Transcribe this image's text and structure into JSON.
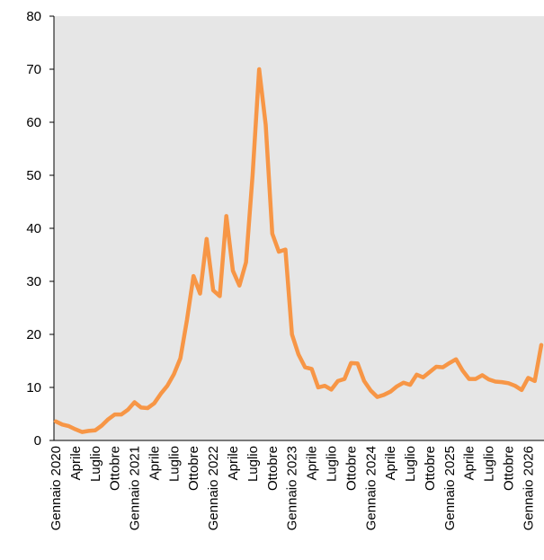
{
  "chart_data": {
    "type": "line",
    "categories": [
      "Gennaio 2020",
      null,
      null,
      "Aprile",
      null,
      null,
      "Luglio",
      null,
      null,
      "Ottobre",
      null,
      null,
      "Gennaio 2021",
      null,
      null,
      "Aprile",
      null,
      null,
      "Luglio",
      null,
      null,
      "Ottobre",
      null,
      null,
      "Gennaio 2022",
      null,
      null,
      "Aprile",
      null,
      null,
      "Luglio",
      null,
      null,
      "Ottobre",
      null,
      null,
      "Gennaio 2023",
      null,
      null,
      "Aprile",
      null,
      null,
      "Luglio",
      null,
      null,
      "Ottobre",
      null,
      null,
      "Gennaio 2024",
      null,
      null,
      "Aprile",
      null,
      null,
      "Luglio",
      null,
      null,
      "Ottobre",
      null,
      null,
      "Gennaio 2025",
      null,
      null,
      "Aprile",
      null,
      null,
      "Luglio",
      null,
      null,
      "Ottobre",
      null,
      null,
      "Gennaio 2026",
      null,
      null
    ],
    "series": [
      {
        "color": "#f79646",
        "values": [
          3.6,
          3.0,
          2.7,
          2.1,
          1.6,
          1.8,
          1.9,
          2.8,
          4.0,
          4.9,
          4.9,
          5.8,
          7.2,
          6.2,
          6.1,
          7.0,
          8.8,
          10.3,
          12.5,
          15.5,
          22.7,
          31.0,
          27.7,
          38.0,
          28.3,
          27.2,
          42.3,
          32.0,
          29.2,
          33.6,
          50.0,
          70.0,
          59.5,
          39.0,
          35.6,
          36.0,
          20.0,
          16.2,
          13.8,
          13.5,
          10.0,
          10.3,
          9.6,
          11.2,
          11.6,
          14.6,
          14.5,
          11.2,
          9.4,
          8.2,
          8.6,
          9.2,
          10.2,
          10.9,
          10.5,
          12.4,
          11.9,
          12.9,
          13.9,
          13.8,
          14.6,
          15.3,
          13.2,
          11.6,
          11.6,
          12.3,
          11.5,
          11.1,
          11.0,
          10.8,
          10.3,
          9.5,
          11.8,
          11.2,
          18.0
        ]
      }
    ],
    "ylim": [
      0,
      80
    ],
    "yticks": [
      0,
      10,
      20,
      30,
      40,
      50,
      60,
      70,
      80
    ]
  }
}
